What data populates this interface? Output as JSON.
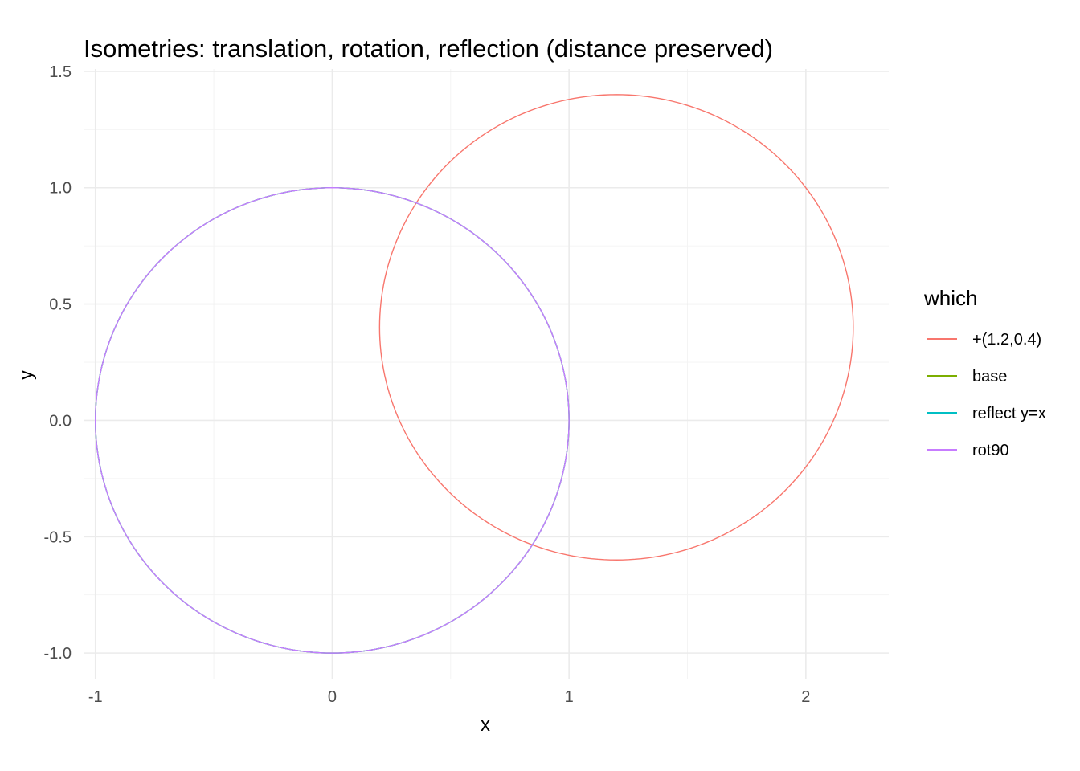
{
  "chart_data": {
    "type": "line",
    "title": "Isometries: translation, rotation, reflection (distance preserved)",
    "xlabel": "x",
    "ylabel": "y",
    "xlim": [
      -1.05,
      2.35
    ],
    "ylim": [
      -1.11,
      1.51
    ],
    "x_ticks": [
      -1,
      0,
      1,
      2
    ],
    "x_tick_labels": [
      "-1",
      "0",
      "1",
      "2"
    ],
    "y_ticks": [
      -1.0,
      -0.5,
      0.0,
      0.5,
      1.0,
      1.5
    ],
    "y_tick_labels": [
      "-1.0",
      "-0.5",
      "0.0",
      "0.5",
      "1.0",
      "1.5"
    ],
    "grid": true,
    "legend": {
      "title": "which",
      "placement": "right"
    },
    "series": [
      {
        "name": "+(1.2,0.4)",
        "color": "#F8766D",
        "shape": "circle",
        "center": [
          1.2,
          0.4
        ],
        "radius": 1.0
      },
      {
        "name": "base",
        "color": "#7CAE00",
        "shape": "circle",
        "center": [
          0.0,
          0.0
        ],
        "radius": 1.0
      },
      {
        "name": "reflect y=x",
        "color": "#00BFC4",
        "shape": "circle",
        "center": [
          0.0,
          0.0
        ],
        "radius": 1.0
      },
      {
        "name": "rot90",
        "color": "#C77CFF",
        "shape": "circle",
        "center": [
          0.0,
          0.0
        ],
        "radius": 1.0
      }
    ]
  }
}
